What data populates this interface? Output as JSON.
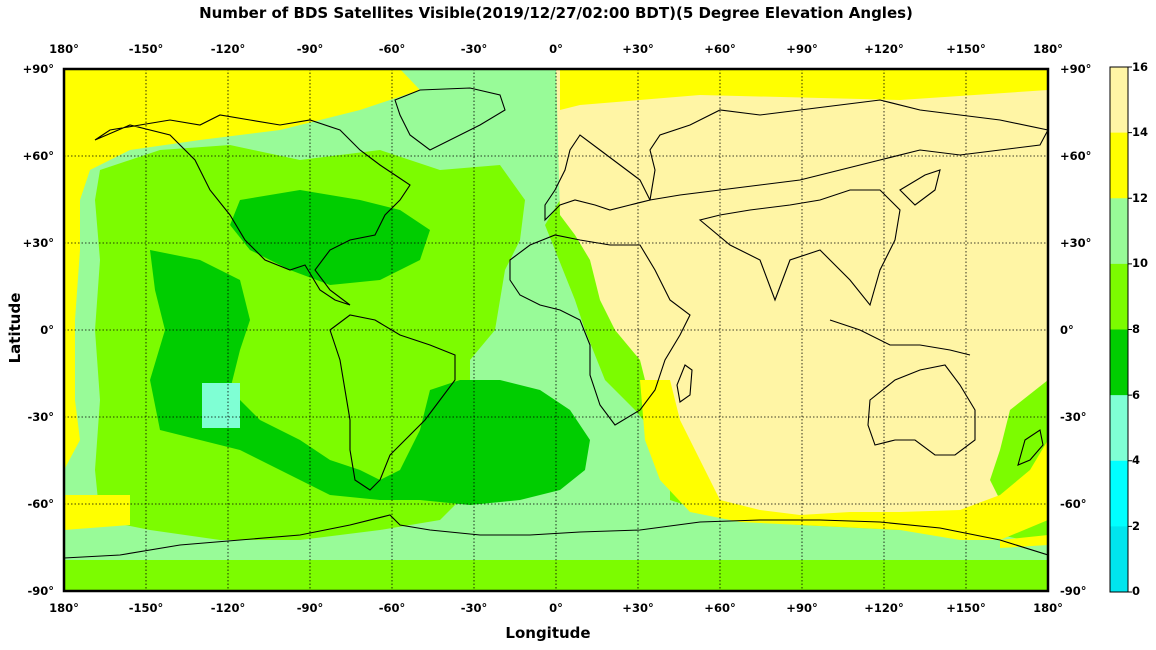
{
  "title": "Number of BDS Satellites Visible(2019/12/27/02:00 BDT)(5 Degree Elevation Angles)",
  "x_axis": {
    "title": "Longitude",
    "ticks": [
      "180°",
      "-150°",
      "-120°",
      "-90°",
      "-60°",
      "-30°",
      "0°",
      "+30°",
      "+60°",
      "+90°",
      "+120°",
      "+150°",
      "180°"
    ]
  },
  "y_axis": {
    "title": "Latitude",
    "ticks": [
      "+90°",
      "+60°",
      "+30°",
      "0°",
      "-30°",
      "-60°",
      "-90°"
    ]
  },
  "colorbar": {
    "ticks": [
      "16",
      "14",
      "12",
      "10",
      "8",
      "6",
      "4",
      "2",
      "0"
    ],
    "colors": [
      "#fff5a5",
      "#ffff00",
      "#98fb98",
      "#7cfc00",
      "#00cd00",
      "#7fffd4",
      "#00ffff",
      "#00e5ee"
    ]
  },
  "colors": {
    "background": "#ffffff",
    "continent_stroke": "#000000",
    "grid": "#000000"
  }
}
